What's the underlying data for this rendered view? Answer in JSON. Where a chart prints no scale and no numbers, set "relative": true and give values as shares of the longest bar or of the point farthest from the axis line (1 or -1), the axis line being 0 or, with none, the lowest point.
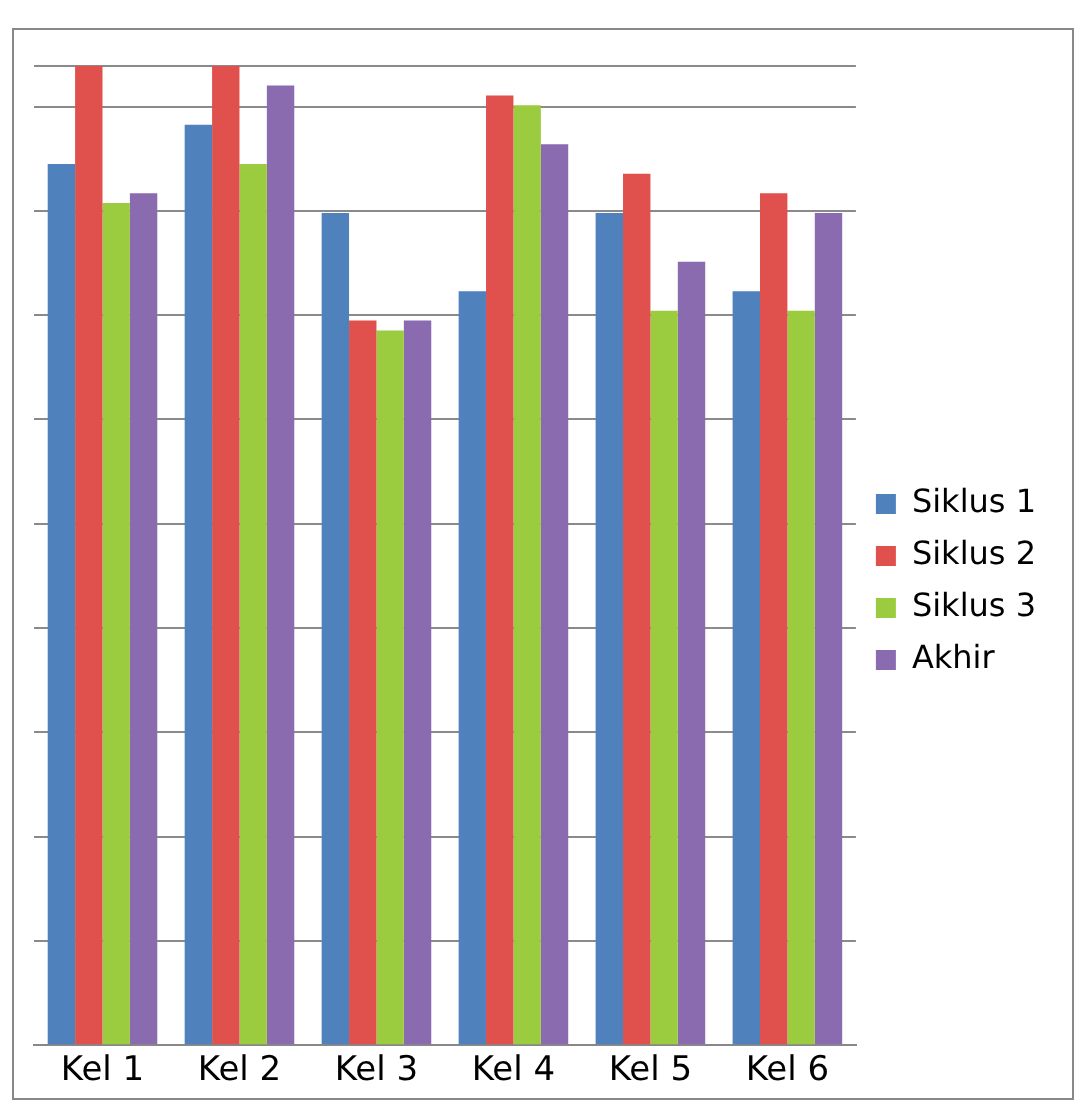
{
  "chart_data": {
    "type": "bar",
    "relative": true,
    "categories": [
      "Kel 1",
      "Kel 2",
      "Kel 3",
      "Kel 4",
      "Kel 5",
      "Kel 6"
    ],
    "series": [
      {
        "name": "Siklus 1",
        "color": "#4f81bd",
        "values": [
          0.9,
          0.94,
          0.85,
          0.77,
          0.85,
          0.77
        ]
      },
      {
        "name": "Siklus 2",
        "color": "#e0504d",
        "values": [
          1,
          1,
          0.74,
          0.97,
          0.89,
          0.87
        ]
      },
      {
        "name": "Siklus 3",
        "color": "#9bcc3f",
        "values": [
          0.86,
          0.9,
          0.73,
          0.96,
          0.75,
          0.75
        ]
      },
      {
        "name": "Akhir",
        "color": "#8a6bb0",
        "values": [
          0.87,
          0.98,
          0.74,
          0.92,
          0.8,
          0.85
        ]
      }
    ],
    "grid": "y",
    "legend": "right"
  }
}
